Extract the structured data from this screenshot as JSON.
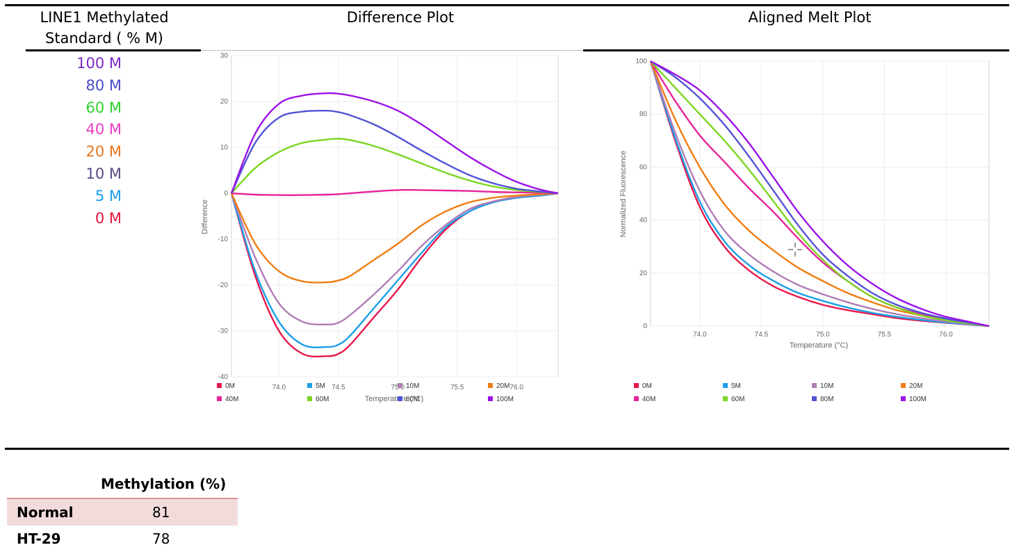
{
  "header": {
    "col1_line1": "LINE1 Methylated",
    "col1_line2": "Standard ( % M)",
    "col2": "Difference Plot",
    "col3": "Aligned Melt Plot"
  },
  "standards": [
    {
      "label": "100 M",
      "color": "#7b27c4"
    },
    {
      "label": "80 M",
      "color": "#4b4bc8"
    },
    {
      "label": "60 M",
      "color": "#2ed12e"
    },
    {
      "label": "40 M",
      "color": "#e83ac4"
    },
    {
      "label": "20 M",
      "color": "#e8761e"
    },
    {
      "label": "10 M",
      "color": "#5b4a86"
    },
    {
      "label": "5 M",
      "color": "#1c9ee8"
    },
    {
      "label": "0 M",
      "color": "#e3163b"
    }
  ],
  "chart_data": [
    {
      "type": "line",
      "title": "Difference Plot",
      "xlabel": "Temperature (°C)",
      "ylabel": "Difference",
      "xlim": [
        73.6,
        76.35
      ],
      "ylim": [
        -40,
        30
      ],
      "x_ticks": [
        "74.0",
        "74.5",
        "75.0",
        "75.5",
        "76.0"
      ],
      "y_ticks": [
        "30",
        "20",
        "10",
        "0",
        "-10",
        "-20",
        "-30",
        "-40"
      ],
      "grid": true,
      "legend": "bottom",
      "x": [
        73.6,
        73.8,
        74.0,
        74.2,
        74.4,
        74.5,
        74.6,
        74.8,
        75.0,
        75.2,
        75.4,
        75.6,
        75.8,
        76.0,
        76.2,
        76.35
      ],
      "series": [
        {
          "name": "0M",
          "color": "#e8174a",
          "values": [
            0,
            -18,
            -30,
            -35,
            -35.5,
            -35,
            -33,
            -27,
            -21,
            -14,
            -8,
            -4,
            -2,
            -1,
            -0.5,
            0
          ]
        },
        {
          "name": "5M",
          "color": "#1c9ee8",
          "values": [
            0,
            -17,
            -28,
            -33,
            -33.5,
            -33,
            -31,
            -25,
            -19,
            -13,
            -7.5,
            -4,
            -2,
            -1,
            -0.5,
            0
          ]
        },
        {
          "name": "10M",
          "color": "#b07cb5",
          "values": [
            0,
            -14,
            -24,
            -28,
            -28.6,
            -28.2,
            -26.5,
            -22,
            -17,
            -11.5,
            -7,
            -3.5,
            -1.8,
            -0.8,
            -0.3,
            0
          ]
        },
        {
          "name": "20M",
          "color": "#f07d10",
          "values": [
            0,
            -11,
            -17,
            -19.2,
            -19.4,
            -19,
            -18,
            -14.5,
            -11,
            -7,
            -4,
            -2,
            -1,
            -0.5,
            -0.2,
            0
          ]
        },
        {
          "name": "40M",
          "color": "#e6239b",
          "values": [
            0,
            -0.3,
            -0.4,
            -0.4,
            -0.3,
            -0.2,
            0,
            0.4,
            0.7,
            0.7,
            0.6,
            0.5,
            0.3,
            0.2,
            0.1,
            0
          ]
        },
        {
          "name": "60M",
          "color": "#7ad61e",
          "values": [
            0,
            5.5,
            9,
            11,
            11.7,
            11.9,
            11.6,
            10.3,
            8.5,
            6.5,
            4.5,
            2.8,
            1.5,
            0.7,
            0.3,
            0
          ]
        },
        {
          "name": "80M",
          "color": "#5252d6",
          "values": [
            0,
            11,
            16.5,
            17.8,
            18,
            17.7,
            17,
            15,
            12.3,
            9.3,
            6.5,
            4,
            2.2,
            1,
            0.4,
            0
          ]
        },
        {
          "name": "100M",
          "color": "#9b12e8",
          "values": [
            0,
            13,
            19.5,
            21.3,
            21.8,
            21.7,
            21.3,
            20,
            18,
            15,
            11.5,
            8,
            5,
            2.5,
            0.8,
            0
          ]
        }
      ]
    },
    {
      "type": "line",
      "title": "Aligned Melt Plot",
      "xlabel": "Temperature (°C)",
      "ylabel": "Normalized Fluorescence",
      "xlim": [
        73.6,
        76.35
      ],
      "ylim": [
        0,
        100
      ],
      "x_ticks": [
        "74.0",
        "74.5",
        "75.0",
        "75.5",
        "76.0"
      ],
      "y_ticks": [
        "100",
        "80",
        "60",
        "40",
        "20",
        "0"
      ],
      "grid": true,
      "legend": "bottom",
      "x": [
        73.6,
        73.8,
        74.0,
        74.2,
        74.4,
        74.6,
        74.8,
        75.0,
        75.2,
        75.4,
        75.6,
        75.8,
        76.0,
        76.2,
        76.35
      ],
      "series": [
        {
          "name": "0M",
          "color": "#e8174a",
          "values": [
            100,
            70,
            45,
            30,
            21,
            15,
            11,
            8,
            6,
            4.5,
            3,
            2,
            1.2,
            0.5,
            0
          ]
        },
        {
          "name": "5M",
          "color": "#1c9ee8",
          "values": [
            100,
            71,
            47,
            32,
            23,
            17,
            12.5,
            9.5,
            7,
            5,
            3.5,
            2.3,
            1.3,
            0.6,
            0
          ]
        },
        {
          "name": "10M",
          "color": "#b07cb5",
          "values": [
            100,
            73,
            51,
            36,
            27,
            20.5,
            15.5,
            12,
            9,
            6.5,
            4.5,
            3,
            1.7,
            0.8,
            0
          ]
        },
        {
          "name": "20M",
          "color": "#f07d10",
          "values": [
            100,
            78,
            60,
            46,
            36,
            28.5,
            22,
            17,
            12.5,
            9,
            6,
            4,
            2.3,
            1,
            0
          ]
        },
        {
          "name": "40M",
          "color": "#e6239b",
          "values": [
            100,
            85,
            72,
            62,
            52,
            43,
            33,
            24,
            17,
            11,
            7,
            4.5,
            2.5,
            1,
            0
          ]
        },
        {
          "name": "60M",
          "color": "#7ad61e",
          "values": [
            100,
            90,
            80,
            70,
            59,
            47,
            35,
            25,
            17,
            11,
            7,
            4,
            2.2,
            0.9,
            0
          ]
        },
        {
          "name": "80M",
          "color": "#5252d6",
          "values": [
            100,
            94,
            86,
            76,
            64,
            51,
            38,
            27,
            19,
            12.5,
            8,
            5,
            2.8,
            1.2,
            0
          ]
        },
        {
          "name": "100M",
          "color": "#9b12e8",
          "values": [
            100,
            95,
            89,
            80,
            69,
            56,
            43,
            32,
            23,
            16,
            10.5,
            6.5,
            3.5,
            1.5,
            0
          ]
        }
      ]
    }
  ],
  "methylation_table": {
    "header": "Methylation (%)",
    "rows": [
      {
        "name": "Normal",
        "value": "81"
      },
      {
        "name": "HT-29",
        "value": "78"
      }
    ]
  }
}
